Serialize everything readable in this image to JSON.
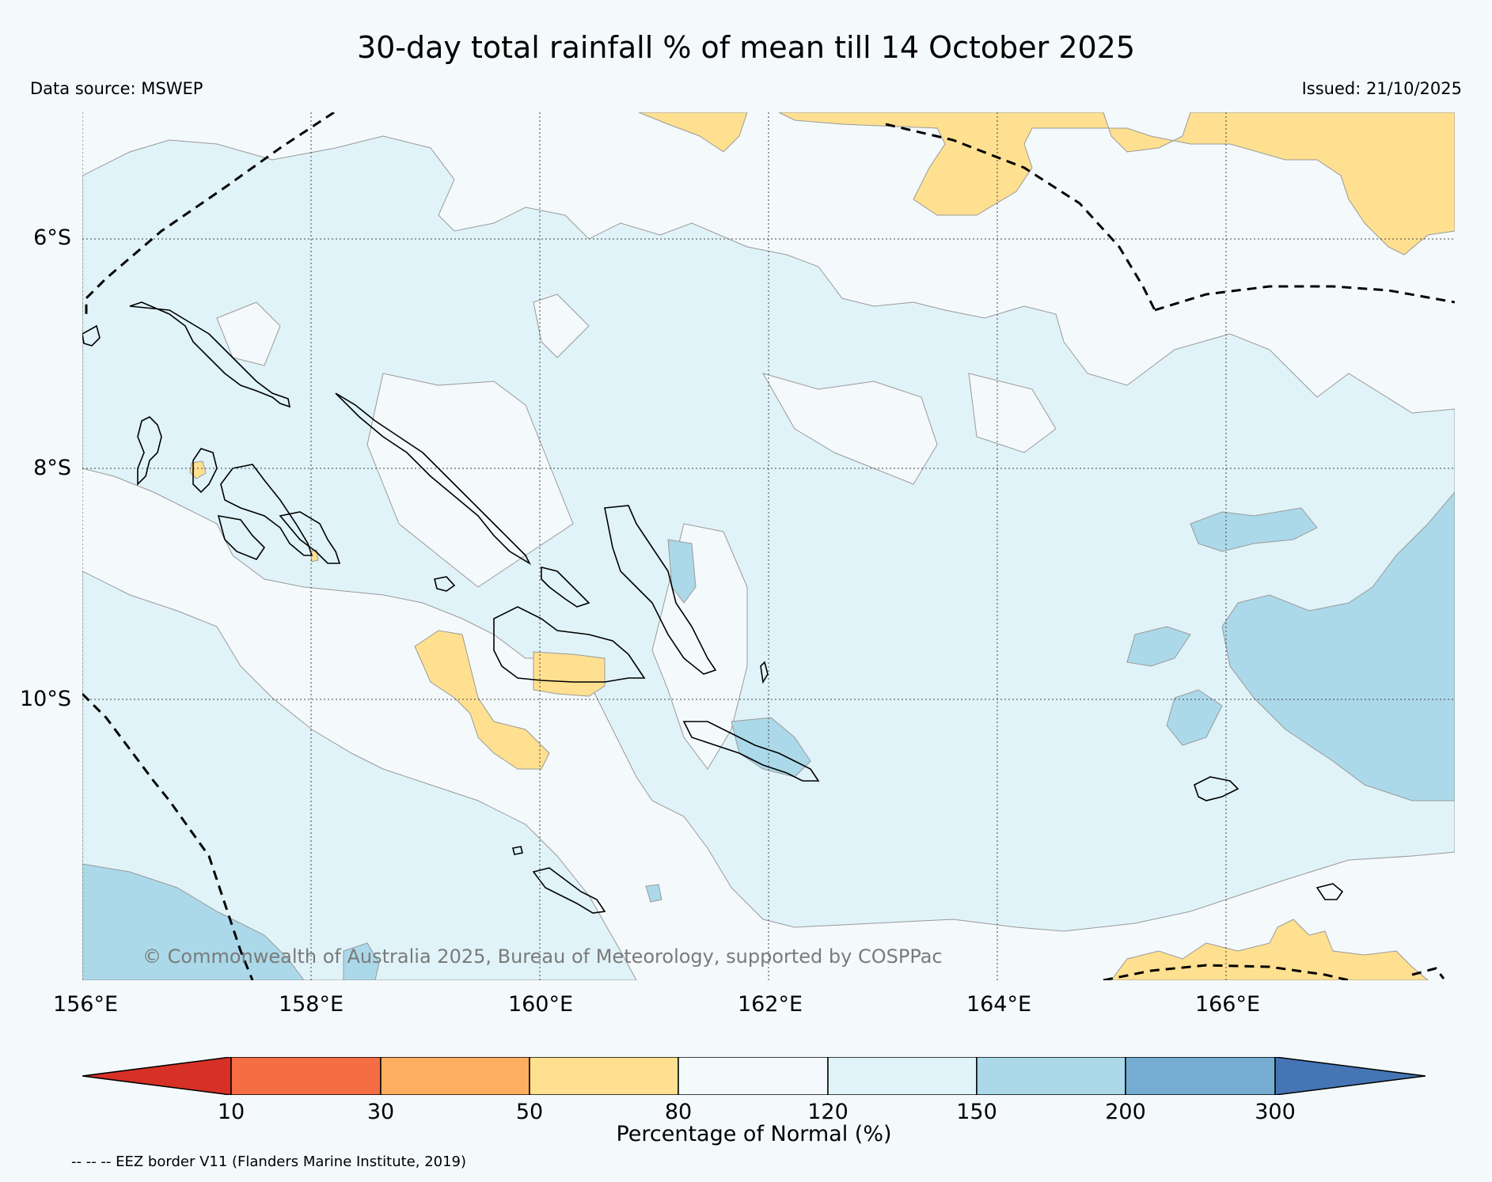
{
  "header": {
    "title": "30-day total rainfall % of mean till 14 October 2025",
    "data_source": "Data source: MSWEP",
    "issued": "Issued: 21/10/2025"
  },
  "map": {
    "lat_labels": [
      "6°S",
      "8°S",
      "10°S"
    ],
    "lon_labels": [
      "156°E",
      "158°E",
      "160°E",
      "162°E",
      "164°E",
      "166°E"
    ],
    "copyright": "© Commonwealth of Australia 2025, Bureau of Meteorology, supported by COSPPac",
    "background_color": "#f4f9fb",
    "grid": "dotted"
  },
  "colorbar": {
    "ticks": [
      "10",
      "30",
      "50",
      "80",
      "120",
      "150",
      "200",
      "300"
    ],
    "title": "Percentage of Normal (%)",
    "colors": [
      "#d73027",
      "#f46d43",
      "#fdae61",
      "#fee090",
      "#f4f9fb",
      "#e0f3f8",
      "#abd9e9",
      "#74add1",
      "#4575b4"
    ]
  },
  "footer": {
    "eez_note": "-- -- -- EEZ border V11 (Flanders Marine Institute, 2019)"
  }
}
